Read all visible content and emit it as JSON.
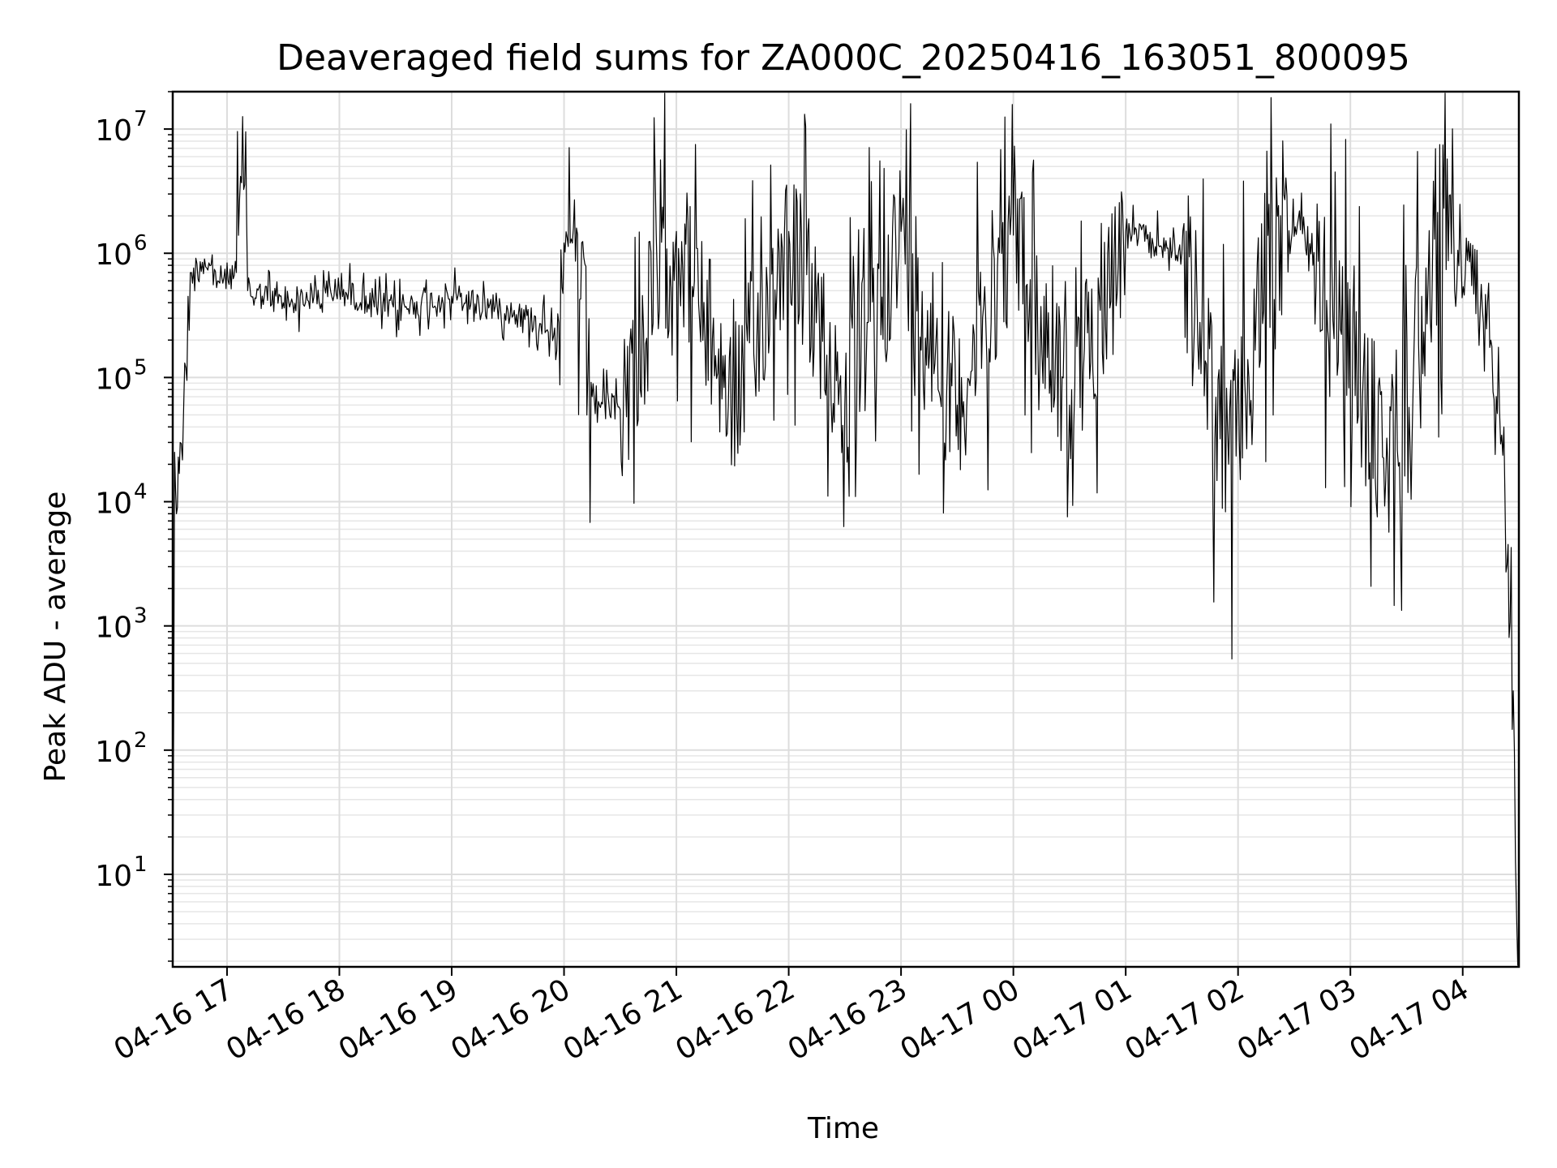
{
  "chart_data": {
    "type": "line",
    "title": "Deaveraged field sums for ZA000C_20250416_163051_800095",
    "xlabel": "Time",
    "ylabel": "Peak ADU - average",
    "yscale": "log",
    "ylim": [
      1.8,
      20000000
    ],
    "xlim": [
      "2025-04-16 16:31",
      "2025-04-17 04:30"
    ],
    "grid": "major and minor, light gray",
    "line_color": "#000000",
    "x_ticks": [
      {
        "x": "2025-04-16 17:00",
        "label": "04-16 17"
      },
      {
        "x": "2025-04-16 18:00",
        "label": "04-16 18"
      },
      {
        "x": "2025-04-16 19:00",
        "label": "04-16 19"
      },
      {
        "x": "2025-04-16 20:00",
        "label": "04-16 20"
      },
      {
        "x": "2025-04-16 21:00",
        "label": "04-16 21"
      },
      {
        "x": "2025-04-16 22:00",
        "label": "04-16 22"
      },
      {
        "x": "2025-04-16 23:00",
        "label": "04-16 23"
      },
      {
        "x": "2025-04-17 00:00",
        "label": "04-17 00"
      },
      {
        "x": "2025-04-17 01:00",
        "label": "04-17 01"
      },
      {
        "x": "2025-04-17 02:00",
        "label": "04-17 02"
      },
      {
        "x": "2025-04-17 03:00",
        "label": "04-17 03"
      },
      {
        "x": "2025-04-17 04:00",
        "label": "04-17 04"
      }
    ],
    "y_ticks": [
      {
        "value": 10,
        "base": "10",
        "exp": "1"
      },
      {
        "value": 100,
        "base": "10",
        "exp": "2"
      },
      {
        "value": 1000,
        "base": "10",
        "exp": "3"
      },
      {
        "value": 10000,
        "base": "10",
        "exp": "4"
      },
      {
        "value": 100000,
        "base": "10",
        "exp": "5"
      },
      {
        "value": 1000000,
        "base": "10",
        "exp": "6"
      },
      {
        "value": 10000000,
        "base": "10",
        "exp": "7"
      }
    ],
    "series": [
      {
        "points": [
          [
            "2025-04-16 16:31",
            4
          ],
          [
            "2025-04-16 16:32",
            25000
          ],
          [
            "2025-04-16 16:33",
            8000
          ],
          [
            "2025-04-16 16:35",
            30000
          ],
          [
            "2025-04-16 16:38",
            120000
          ],
          [
            "2025-04-16 16:41",
            700000
          ],
          [
            "2025-04-16 16:48",
            900000
          ],
          [
            "2025-04-16 16:55",
            600000
          ],
          [
            "2025-04-16 17:05",
            700000
          ],
          [
            "2025-04-16 17:10",
            9500000
          ],
          [
            "2025-04-16 17:11",
            500000
          ],
          [
            "2025-04-16 17:30",
            400000
          ],
          [
            "2025-04-16 18:00",
            500000
          ],
          [
            "2025-04-16 18:30",
            350000
          ],
          [
            "2025-04-16 19:00",
            450000
          ],
          [
            "2025-04-16 19:30",
            350000
          ],
          [
            "2025-04-16 19:55",
            250000
          ],
          [
            "2025-04-16 20:05",
            1600000
          ],
          [
            "2025-04-16 20:15",
            70000
          ],
          [
            "2025-04-16 20:30",
            55000
          ],
          [
            "2025-04-16 21:00",
            1500000
          ],
          [
            "2025-04-16 21:30",
            60000
          ],
          [
            "2025-04-16 22:00",
            1500000
          ],
          [
            "2025-04-16 22:30",
            60000
          ],
          [
            "2025-04-16 23:00",
            1500000
          ],
          [
            "2025-04-16 23:30",
            60000
          ],
          [
            "2025-04-17 00:00",
            1400000
          ],
          [
            "2025-04-17 00:30",
            60000
          ],
          [
            "2025-04-17 01:00",
            1500000
          ],
          [
            "2025-04-17 01:30",
            1000000
          ],
          [
            "2025-04-17 01:55",
            20000
          ],
          [
            "2025-04-17 02:25",
            2700000
          ],
          [
            "2025-04-17 02:40",
            800000
          ],
          [
            "2025-04-17 03:20",
            20000
          ],
          [
            "2025-04-17 03:50",
            2300000
          ],
          [
            "2025-04-17 04:15",
            200000
          ],
          [
            "2025-04-17 04:22",
            40000
          ],
          [
            "2025-04-17 04:27",
            300
          ],
          [
            "2025-04-17 04:30",
            4
          ]
        ]
      }
    ]
  }
}
